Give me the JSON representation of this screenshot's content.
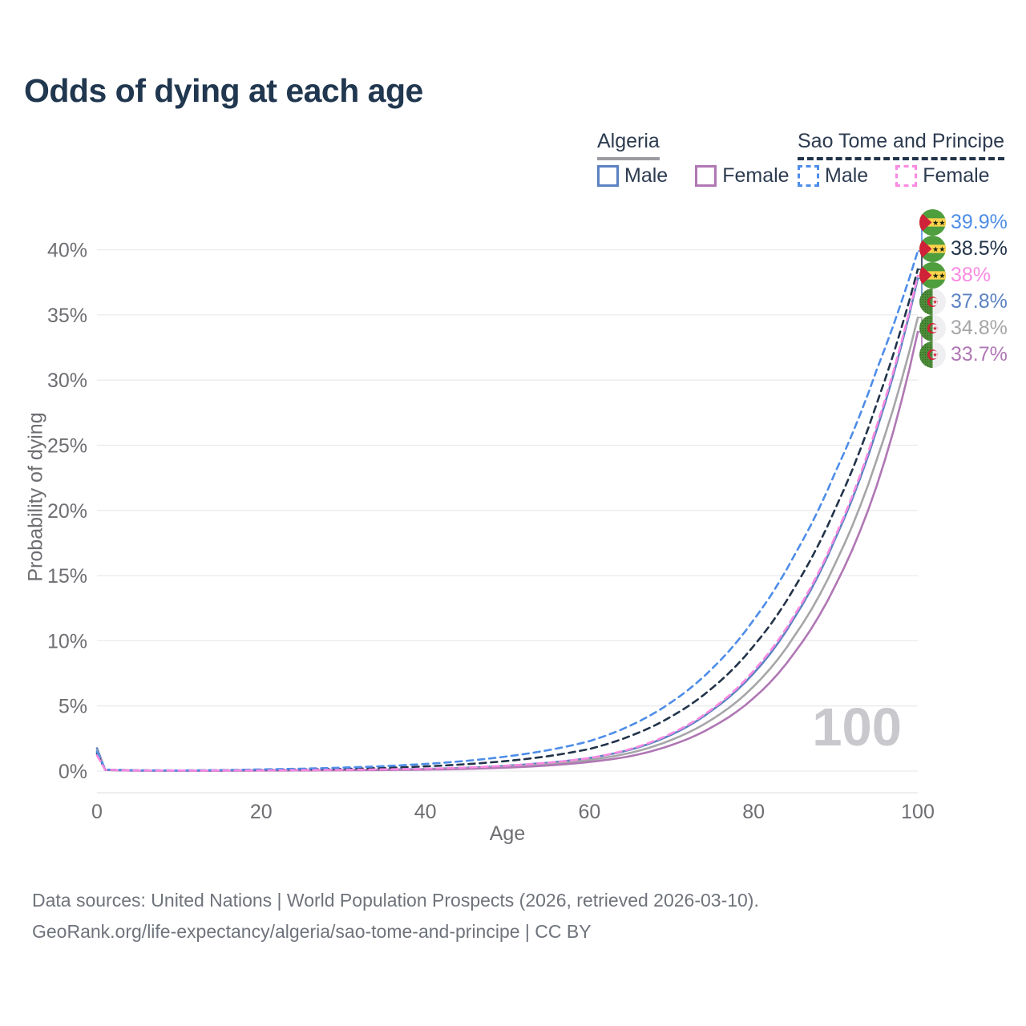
{
  "title": "Odds of dying at each age",
  "legend": {
    "groups": [
      {
        "title": "Algeria",
        "line_style": "solid",
        "underline_color": "#9b9ba1",
        "items": [
          {
            "label": "Male",
            "color": "#5b82c2"
          },
          {
            "label": "Female",
            "color": "#b077b4"
          }
        ]
      },
      {
        "title": "Sao Tome and Principe",
        "line_style": "dashed",
        "underline_color": "#22344a",
        "items": [
          {
            "label": "Male",
            "color": "#4e8de8"
          },
          {
            "label": "Female",
            "color": "#fa8ae2"
          }
        ]
      }
    ]
  },
  "chart_data": {
    "type": "line",
    "title": "Odds of dying at each age",
    "xlabel": "Age",
    "ylabel": "Probability of dying",
    "x_ticks": [
      0,
      20,
      40,
      60,
      80,
      100
    ],
    "y_ticks_percent": [
      0,
      5,
      10,
      15,
      20,
      25,
      30,
      35,
      40
    ],
    "xlim": [
      0,
      100
    ],
    "ylim_percent": [
      0,
      42
    ],
    "grid": true,
    "legend_position": "top-right",
    "watermark": "100",
    "ages": [
      0,
      1,
      5,
      10,
      20,
      30,
      40,
      50,
      60,
      65,
      70,
      75,
      80,
      85,
      90,
      95,
      100
    ],
    "series": [
      {
        "name": "Sao Tome and Principe — Male",
        "country": "Sao Tome and Principe",
        "sex": "Male",
        "color": "#4e8de8",
        "dash": "dashed",
        "flag": "sao-tome-and-principe",
        "end_label": "39.9%",
        "values_percent": [
          1.5,
          0.12,
          0.06,
          0.05,
          0.13,
          0.27,
          0.55,
          1.13,
          2.3,
          3.5,
          5.3,
          7.9,
          11.6,
          16.6,
          23.0,
          30.8,
          39.9
        ]
      },
      {
        "name": "Sao Tome and Principe — Both sexes",
        "country": "Sao Tome and Principe",
        "sex": "Both",
        "color": "#22344a",
        "dash": "dashed",
        "flag": "sao-tome-and-principe",
        "end_label": "38.5%",
        "values_percent": [
          1.35,
          0.11,
          0.055,
          0.045,
          0.09,
          0.17,
          0.36,
          0.78,
          1.7,
          2.7,
          4.2,
          6.4,
          9.6,
          14.1,
          20.2,
          28.2,
          38.5
        ]
      },
      {
        "name": "Sao Tome and Principe — Female",
        "country": "Sao Tome and Principe",
        "sex": "Female",
        "color": "#fa8ae2",
        "dash": "dashed",
        "flag": "sao-tome-and-principe",
        "end_label": "38%",
        "values_percent": [
          1.2,
          0.1,
          0.05,
          0.04,
          0.06,
          0.1,
          0.18,
          0.42,
          1.0,
          1.7,
          2.9,
          4.8,
          7.7,
          12.0,
          18.1,
          26.5,
          38.0
        ]
      },
      {
        "name": "Algeria — Male",
        "country": "Algeria",
        "sex": "Male",
        "color": "#5b82c2",
        "dash": "solid",
        "flag": "algeria",
        "end_label": "37.8%",
        "values_percent": [
          1.75,
          0.1,
          0.045,
          0.035,
          0.06,
          0.09,
          0.16,
          0.42,
          1.0,
          1.65,
          2.8,
          4.7,
          7.5,
          11.8,
          17.9,
          26.2,
          37.8
        ]
      },
      {
        "name": "Algeria — Both sexes",
        "country": "Algeria",
        "sex": "Both",
        "color": "#a6a6a9",
        "dash": "solid",
        "flag": "algeria",
        "end_label": "34.8%",
        "values_percent": [
          1.6,
          0.09,
          0.04,
          0.03,
          0.05,
          0.08,
          0.14,
          0.34,
          0.85,
          1.4,
          2.4,
          4.0,
          6.5,
          10.4,
          16.0,
          23.9,
          34.8
        ]
      },
      {
        "name": "Algeria — Female",
        "country": "Algeria",
        "sex": "Female",
        "color": "#b077b4",
        "dash": "solid",
        "flag": "algeria",
        "end_label": "33.7%",
        "values_percent": [
          1.45,
          0.085,
          0.035,
          0.028,
          0.04,
          0.06,
          0.11,
          0.27,
          0.7,
          1.15,
          2.0,
          3.4,
          5.6,
          9.1,
          14.3,
          21.9,
          33.7
        ]
      }
    ]
  },
  "footer": {
    "line1": "Data sources: United Nations | World Population Prospects (2026, retrieved 2026-03-10).",
    "line2": "GeoRank.org/life-expectancy/algeria/sao-tome-and-principe | CC BY"
  }
}
